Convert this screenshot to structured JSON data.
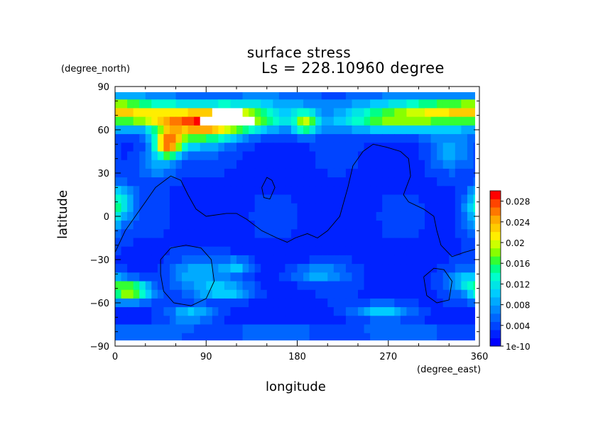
{
  "chart_data": {
    "type": "heatmap",
    "title": "surface stress",
    "subtitle": "Ls = 228.10960 degree",
    "xlabel": "longitude",
    "ylabel": "latitude",
    "x_units": "(degree_east)",
    "y_units": "(degree_north)",
    "xlim": [
      0,
      360
    ],
    "ylim": [
      -90,
      90
    ],
    "x_ticks": [
      "0",
      "90",
      "180",
      "270",
      "360"
    ],
    "y_ticks": [
      "90",
      "60",
      "30",
      "0",
      "−30",
      "−60",
      "−90"
    ],
    "x_tick_values": [
      0,
      90,
      180,
      270,
      360
    ],
    "y_tick_values": [
      90,
      60,
      30,
      0,
      -30,
      -60,
      -90
    ],
    "colorbar": {
      "labels": [
        "0.028",
        "0.024",
        "0.02",
        "0.016",
        "0.012",
        "0.008",
        "0.004",
        "1e-10"
      ],
      "values": [
        0.028,
        0.024,
        0.02,
        0.016,
        0.012,
        0.008,
        0.004,
        1e-10
      ],
      "min": 1e-10,
      "max": 0.03,
      "colors": [
        "#0000ff",
        "#0022ff",
        "#0044ff",
        "#0066ff",
        "#0088ff",
        "#00aaff",
        "#00ccff",
        "#00e5e5",
        "#00ffcc",
        "#00ff88",
        "#33ff33",
        "#88ff00",
        "#ccff00",
        "#ffee00",
        "#ffcc00",
        "#ffaa00",
        "#ff7700",
        "#ff4400",
        "#ff0000"
      ]
    },
    "field_blobs": [
      {
        "lon": 5,
        "lat": 72,
        "sx": 20,
        "sy": 7,
        "v": 0.012
      },
      {
        "lon": 45,
        "lat": 70,
        "sx": 22,
        "sy": 6,
        "v": 0.011
      },
      {
        "lon": 110,
        "lat": 68,
        "sx": 40,
        "sy": 7,
        "v": 0.022
      },
      {
        "lon": 52,
        "lat": 50,
        "sx": 10,
        "sy": 7,
        "v": 0.02
      },
      {
        "lon": 80,
        "lat": 58,
        "sx": 25,
        "sy": 8,
        "v": 0.012
      },
      {
        "lon": 188,
        "lat": 65,
        "sx": 8,
        "sy": 6,
        "v": 0.013
      },
      {
        "lon": 280,
        "lat": 68,
        "sx": 45,
        "sy": 7,
        "v": 0.016
      },
      {
        "lon": 330,
        "lat": 74,
        "sx": 25,
        "sy": 5,
        "v": 0.01
      },
      {
        "lon": 15,
        "lat": -52,
        "sx": 15,
        "sy": 5,
        "v": 0.017
      },
      {
        "lon": 110,
        "lat": -52,
        "sx": 20,
        "sy": 4,
        "v": 0.008
      },
      {
        "lon": 75,
        "lat": -68,
        "sx": 15,
        "sy": 4,
        "v": 0.008
      },
      {
        "lon": 265,
        "lat": -66,
        "sx": 20,
        "sy": 4,
        "v": 0.008
      },
      {
        "lon": 200,
        "lat": -40,
        "sx": 20,
        "sy": 4,
        "v": 0.006
      },
      {
        "lon": 350,
        "lat": -45,
        "sx": 15,
        "sy": 6,
        "v": 0.007
      },
      {
        "lon": 355,
        "lat": 0,
        "sx": 10,
        "sy": 12,
        "v": 0.006
      },
      {
        "lon": 5,
        "lat": 10,
        "sx": 10,
        "sy": 8,
        "v": 0.009
      },
      {
        "lon": 120,
        "lat": -35,
        "sx": 10,
        "sy": 4,
        "v": 0.007
      },
      {
        "lon": 330,
        "lat": 45,
        "sx": 15,
        "sy": 10,
        "v": 0.005
      },
      {
        "lon": 40,
        "lat": 35,
        "sx": 15,
        "sy": 8,
        "v": 0.005
      },
      {
        "lon": 80,
        "lat": -40,
        "sx": 20,
        "sy": 8,
        "v": 0.006
      }
    ],
    "saturated_region": {
      "lon_range": [
        85,
        140
      ],
      "lat_range": [
        62,
        73
      ]
    },
    "contours": [
      {
        "points": [
          [
            0,
            -25
          ],
          [
            10,
            -10
          ],
          [
            20,
            0
          ],
          [
            30,
            10
          ],
          [
            40,
            20
          ],
          [
            55,
            28
          ],
          [
            65,
            25
          ],
          [
            72,
            15
          ],
          [
            80,
            5
          ],
          [
            90,
            0
          ],
          [
            110,
            2
          ],
          [
            120,
            2
          ],
          [
            130,
            -2
          ],
          [
            145,
            -10
          ],
          [
            160,
            -15
          ],
          [
            170,
            -18
          ],
          [
            178,
            -15
          ],
          [
            190,
            -12
          ],
          [
            200,
            -15
          ],
          [
            210,
            -10
          ],
          [
            222,
            0
          ],
          [
            230,
            20
          ],
          [
            235,
            35
          ],
          [
            245,
            45
          ],
          [
            255,
            50
          ],
          [
            268,
            48
          ],
          [
            282,
            45
          ],
          [
            290,
            40
          ],
          [
            292,
            28
          ],
          [
            285,
            15
          ],
          [
            290,
            10
          ],
          [
            305,
            5
          ],
          [
            315,
            0
          ],
          [
            318,
            -10
          ],
          [
            322,
            -20
          ],
          [
            333,
            -28
          ],
          [
            345,
            -25
          ],
          [
            360,
            -22
          ]
        ]
      },
      {
        "points": [
          [
            145,
            20
          ],
          [
            150,
            27
          ],
          [
            155,
            25
          ],
          [
            158,
            20
          ],
          [
            153,
            12
          ],
          [
            147,
            13
          ],
          [
            145,
            20
          ]
        ]
      },
      {
        "points": [
          [
            45,
            -30
          ],
          [
            55,
            -22
          ],
          [
            70,
            -20
          ],
          [
            85,
            -22
          ],
          [
            95,
            -30
          ],
          [
            98,
            -45
          ],
          [
            90,
            -57
          ],
          [
            75,
            -62
          ],
          [
            58,
            -60
          ],
          [
            48,
            -52
          ],
          [
            45,
            -40
          ],
          [
            45,
            -30
          ]
        ]
      },
      {
        "points": [
          [
            305,
            -42
          ],
          [
            315,
            -36
          ],
          [
            325,
            -37
          ],
          [
            333,
            -45
          ],
          [
            330,
            -58
          ],
          [
            318,
            -60
          ],
          [
            308,
            -55
          ],
          [
            305,
            -42
          ]
        ]
      }
    ]
  }
}
